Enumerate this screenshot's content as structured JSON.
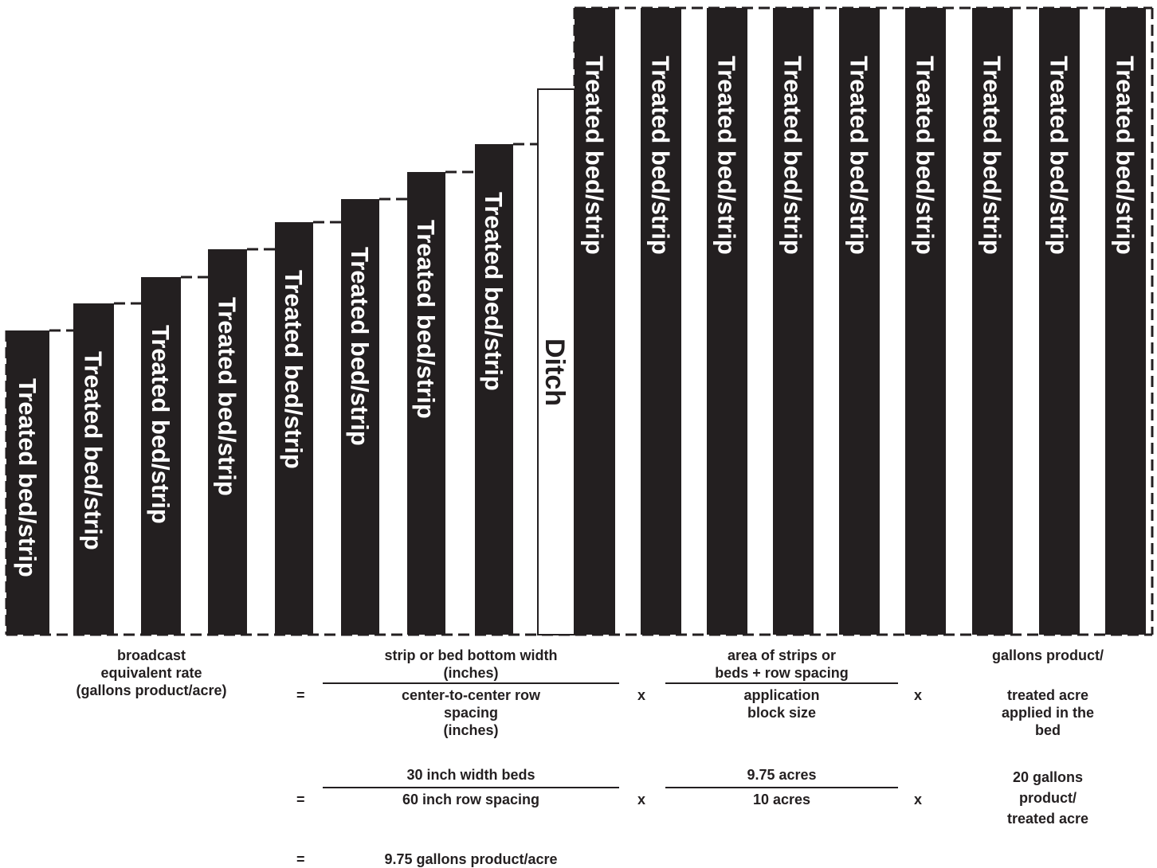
{
  "diagram": {
    "bed_label": "Treated bed/strip",
    "ditch_label": "Ditch",
    "bed_count": 17
  },
  "formula": {
    "result_label": [
      "broadcast",
      "equivalent rate",
      "(gallons product/acre)"
    ],
    "frac1": {
      "numerator": [
        "strip or bed bottom width",
        "(inches)"
      ],
      "denominator": [
        "center-to-center row",
        "spacing",
        "(inches)"
      ]
    },
    "frac2": {
      "numerator": [
        "area of strips or",
        "beds + row spacing"
      ],
      "denominator": [
        "application",
        "block size"
      ]
    },
    "term3": [
      "gallons product/",
      "",
      "treated acre",
      "applied in the",
      "bed"
    ],
    "example": {
      "frac1": {
        "numerator": "30 inch width beds",
        "denominator": "60 inch row spacing"
      },
      "frac2": {
        "numerator": "9.75 acres",
        "denominator": "10 acres"
      },
      "term3": [
        "20 gallons",
        "product/",
        "treated acre"
      ]
    },
    "result": "9.75 gallons product/acre",
    "operators": {
      "equals": "=",
      "times": "x"
    }
  }
}
